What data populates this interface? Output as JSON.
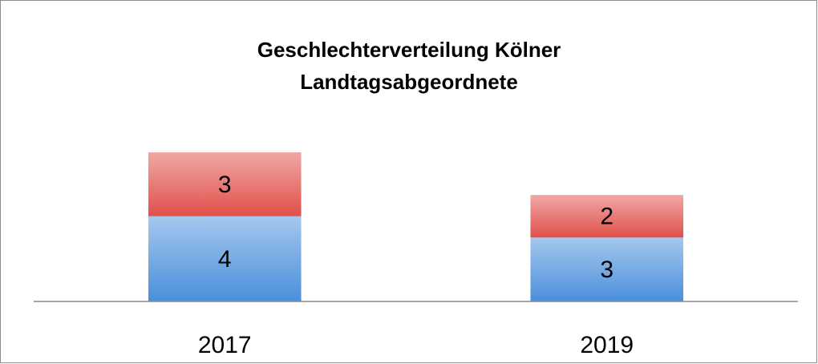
{
  "chart_data": {
    "type": "stacked_bar",
    "title": "Geschlechterverteilung Kölner Landtagsabgeordnete",
    "categories": [
      "2017",
      "2019"
    ],
    "series": [
      {
        "color": "#4a8fdb",
        "values": [
          4,
          3
        ]
      },
      {
        "color": "#e0504a",
        "values": [
          3,
          2
        ]
      }
    ],
    "ylim": [
      0,
      7
    ]
  }
}
